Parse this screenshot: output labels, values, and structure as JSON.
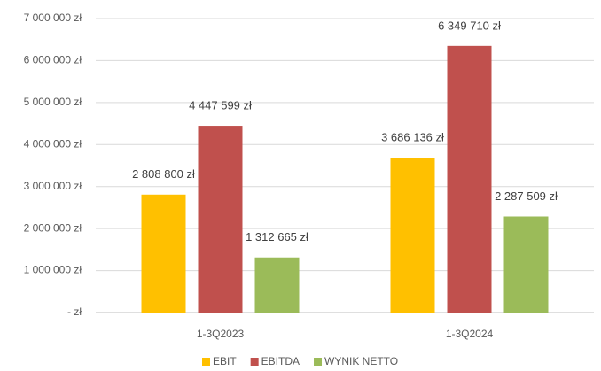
{
  "chart_data": {
    "type": "bar",
    "categories": [
      "1-3Q2023",
      "1-3Q2024"
    ],
    "series": [
      {
        "name": "EBIT",
        "color": "#ffc000",
        "values": [
          2808800,
          3686136
        ],
        "value_labels": [
          "2 808 800 zł",
          "3 686 136 zł"
        ]
      },
      {
        "name": "EBITDA",
        "color": "#c0504d",
        "values": [
          4447599,
          6349710
        ],
        "value_labels": [
          "4 447 599 zł",
          "6 349 710 zł"
        ]
      },
      {
        "name": "WYNIK NETTO",
        "color": "#9bbb59",
        "values": [
          1312665,
          2287509
        ],
        "value_labels": [
          "1 312 665 zł",
          "2 287 509 zł"
        ]
      }
    ],
    "ylim": [
      0,
      7000000
    ],
    "yticks": [
      {
        "value": 0,
        "label": "-   zł"
      },
      {
        "value": 1000000,
        "label": "1 000 000 zł"
      },
      {
        "value": 2000000,
        "label": "2 000 000 zł"
      },
      {
        "value": 3000000,
        "label": "3 000 000 zł"
      },
      {
        "value": 4000000,
        "label": "4 000 000 zł"
      },
      {
        "value": 5000000,
        "label": "5 000 000 zł"
      },
      {
        "value": 6000000,
        "label": "6 000 000 zł"
      },
      {
        "value": 7000000,
        "label": "7 000 000 zł"
      }
    ],
    "grid": true,
    "legend": "bottom"
  }
}
